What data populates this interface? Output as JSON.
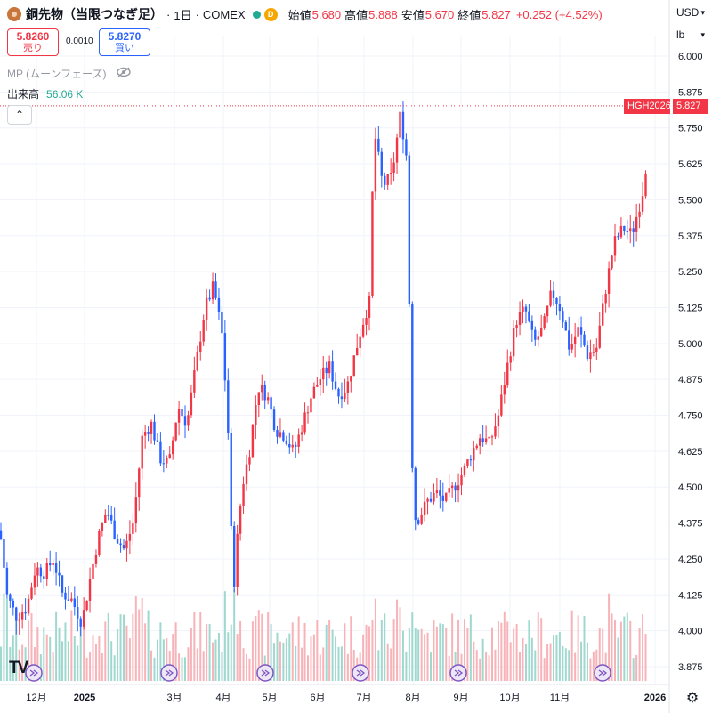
{
  "header": {
    "title": "銅先物（当限つなぎ足）",
    "interval": "1日",
    "exchange": "COMEX",
    "badge": "D",
    "open_label": "始値",
    "open_value": "5.680",
    "high_label": "高値",
    "high_value": "5.888",
    "low_label": "安値",
    "low_value": "5.670",
    "close_label": "終値",
    "close_value": "5.827",
    "change": "+0.252 (+4.52%)"
  },
  "trade": {
    "sell_price": "5.8260",
    "sell_label": "売り",
    "spread": "0.0010",
    "buy_price": "5.8270",
    "buy_label": "買い"
  },
  "indicators": {
    "mp_label": "MP (ムーンフェーズ)",
    "volume_label": "出来高",
    "volume_value": "56.06 K"
  },
  "axis_controls": {
    "currency": "USD",
    "unit": "lb"
  },
  "price_tags": {
    "symbol": "HGH2026",
    "price": "5.827"
  },
  "colors": {
    "up": "#f23645",
    "down": "#2962ff",
    "volume_up": "#f7b3b8",
    "volume_down": "#9fd8cf",
    "price_line": "#f23645"
  },
  "icons": {
    "mp_toggle": "eye-off-icon",
    "collapse": "chevron-up-icon",
    "settings": "gear-icon",
    "moon_phase": "moon-phase-icon"
  },
  "chart_data": {
    "type": "candlestick",
    "y_ticks": [
      "6.000",
      "5.875",
      "5.750",
      "5.625",
      "5.500",
      "5.375",
      "5.250",
      "5.125",
      "5.000",
      "4.875",
      "4.750",
      "4.625",
      "4.500",
      "4.375",
      "4.250",
      "4.125",
      "4.000",
      "3.875"
    ],
    "ylim": [
      3.82,
      6.06
    ],
    "x_labels": [
      "12月",
      "2025",
      "3月",
      "4月",
      "5月",
      "6月",
      "7月",
      "8月",
      "9月",
      "10月",
      "11月",
      "2026"
    ],
    "price_path": [
      [
        0,
        4.35
      ],
      [
        8,
        4.12
      ],
      [
        18,
        4.05
      ],
      [
        30,
        4.08
      ],
      [
        40,
        4.22
      ],
      [
        50,
        4.2
      ],
      [
        60,
        4.25
      ],
      [
        70,
        4.13
      ],
      [
        80,
        4.11
      ],
      [
        92,
        4.03
      ],
      [
        100,
        4.16
      ],
      [
        110,
        4.32
      ],
      [
        120,
        4.42
      ],
      [
        130,
        4.33
      ],
      [
        140,
        4.28
      ],
      [
        150,
        4.38
      ],
      [
        160,
        4.68
      ],
      [
        170,
        4.72
      ],
      [
        180,
        4.6
      ],
      [
        190,
        4.58
      ],
      [
        200,
        4.78
      ],
      [
        210,
        4.72
      ],
      [
        220,
        4.92
      ],
      [
        230,
        5.12
      ],
      [
        240,
        5.2
      ],
      [
        250,
        5.02
      ],
      [
        256,
        4.72
      ],
      [
        262,
        4.12
      ],
      [
        266,
        4.3
      ],
      [
        272,
        4.5
      ],
      [
        280,
        4.62
      ],
      [
        290,
        4.85
      ],
      [
        300,
        4.82
      ],
      [
        310,
        4.7
      ],
      [
        320,
        4.68
      ],
      [
        330,
        4.62
      ],
      [
        340,
        4.72
      ],
      [
        350,
        4.82
      ],
      [
        360,
        4.88
      ],
      [
        370,
        4.92
      ],
      [
        380,
        4.82
      ],
      [
        390,
        4.85
      ],
      [
        400,
        4.98
      ],
      [
        410,
        5.1
      ],
      [
        416,
        5.15
      ],
      [
        420,
        5.75
      ],
      [
        430,
        5.55
      ],
      [
        440,
        5.58
      ],
      [
        450,
        5.8
      ],
      [
        458,
        5.62
      ],
      [
        461,
        4.85
      ],
      [
        463,
        4.6
      ],
      [
        467,
        4.38
      ],
      [
        472,
        4.4
      ],
      [
        480,
        4.45
      ],
      [
        490,
        4.48
      ],
      [
        500,
        4.45
      ],
      [
        510,
        4.5
      ],
      [
        520,
        4.55
      ],
      [
        530,
        4.62
      ],
      [
        540,
        4.68
      ],
      [
        550,
        4.65
      ],
      [
        560,
        4.75
      ],
      [
        570,
        4.92
      ],
      [
        580,
        5.08
      ],
      [
        590,
        5.12
      ],
      [
        600,
        5.0
      ],
      [
        610,
        5.05
      ],
      [
        620,
        5.18
      ],
      [
        630,
        5.12
      ],
      [
        640,
        4.98
      ],
      [
        650,
        5.05
      ],
      [
        660,
        4.96
      ],
      [
        670,
        4.98
      ],
      [
        680,
        5.18
      ],
      [
        690,
        5.35
      ],
      [
        700,
        5.4
      ],
      [
        710,
        5.38
      ],
      [
        720,
        5.5
      ],
      [
        725,
        5.57
      ],
      [
        728,
        5.827
      ]
    ]
  }
}
